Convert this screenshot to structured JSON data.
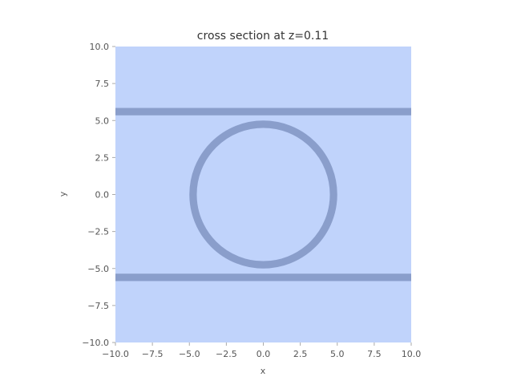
{
  "chart_data": {
    "type": "cross-section",
    "title": "cross section at z=0.11",
    "xlabel": "x",
    "ylabel": "y",
    "xlim": [
      -10,
      10
    ],
    "ylim": [
      -10,
      10
    ],
    "x_ticks": [
      -10,
      -7.5,
      -5,
      -2.5,
      0,
      2.5,
      5,
      7.5,
      10
    ],
    "y_ticks": [
      -10,
      -7.5,
      -5,
      -2.5,
      0,
      2.5,
      5,
      7.5,
      10
    ],
    "x_tick_labels": [
      "−10.0",
      "−7.5",
      "−5.0",
      "−2.5",
      "0.0",
      "2.5",
      "5.0",
      "7.5",
      "10.0"
    ],
    "y_tick_labels": [
      "−10.0",
      "−7.5",
      "−5.0",
      "−2.5",
      "0.0",
      "2.5",
      "5.0",
      "7.5",
      "10.0"
    ],
    "background_color": "#c0d3fb",
    "structure_color": "#8a9ecb",
    "structures": [
      {
        "kind": "horizontal-band",
        "y_center": 5.6,
        "thickness": 0.5
      },
      {
        "kind": "horizontal-band",
        "y_center": -5.6,
        "thickness": 0.5
      },
      {
        "kind": "ring",
        "cx": 0,
        "cy": 0,
        "radius": 4.75,
        "thickness": 0.5
      }
    ],
    "grid": false,
    "legend": "none"
  }
}
